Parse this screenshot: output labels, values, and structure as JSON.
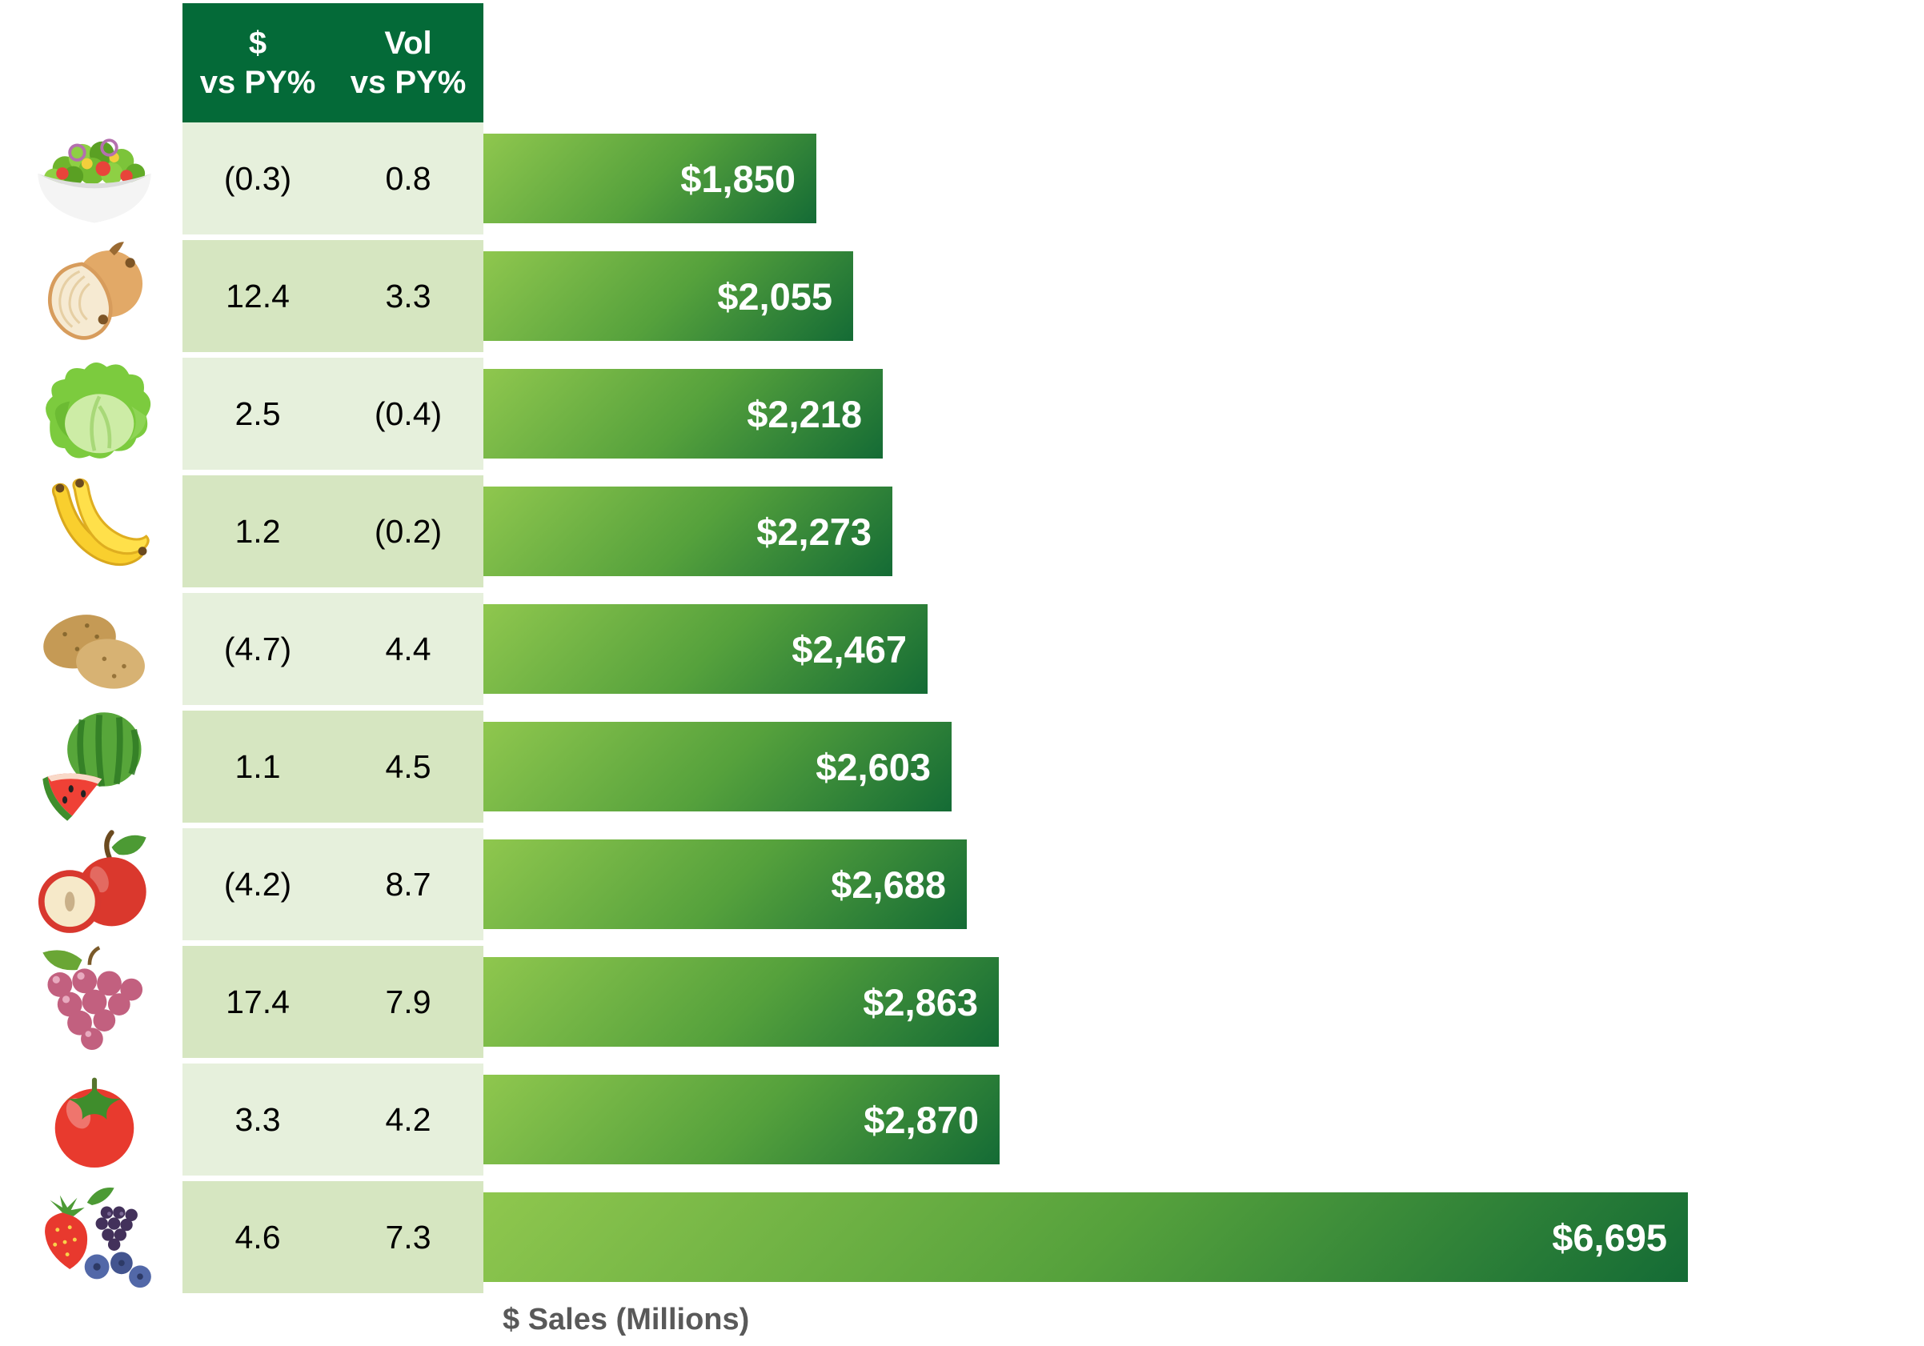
{
  "header": {
    "dollar_col": {
      "line1": "$",
      "line2": "vs PY%"
    },
    "vol_col": {
      "line1": "Vol",
      "line2": "vs PY%"
    }
  },
  "axis_label": "$ Sales (Millions)",
  "colors": {
    "header_bg": "#046a38",
    "row_light": "#e6f0dc",
    "row_dark": "#d6e6c1",
    "bar_gradient_start": "#8fc74e",
    "bar_gradient_mid": "#55a13c",
    "bar_gradient_end": "#146b35",
    "bar_label_text": "#ffffff",
    "table_text": "#000000",
    "axis_label_text": "#595959"
  },
  "rows": [
    {
      "category": "salad",
      "icon": "salad-icon",
      "dollar_vs_py": "(0.3)",
      "vol_vs_py": "0.8",
      "sales_label": "$1,850",
      "sales_value": 1850
    },
    {
      "category": "onions",
      "icon": "onion-icon",
      "dollar_vs_py": "12.4",
      "vol_vs_py": "3.3",
      "sales_label": "$2,055",
      "sales_value": 2055
    },
    {
      "category": "lettuce",
      "icon": "lettuce-icon",
      "dollar_vs_py": "2.5",
      "vol_vs_py": "(0.4)",
      "sales_label": "$2,218",
      "sales_value": 2218
    },
    {
      "category": "bananas",
      "icon": "bananas-icon",
      "dollar_vs_py": "1.2",
      "vol_vs_py": "(0.2)",
      "sales_label": "$2,273",
      "sales_value": 2273
    },
    {
      "category": "potatoes",
      "icon": "potatoes-icon",
      "dollar_vs_py": "(4.7)",
      "vol_vs_py": "4.4",
      "sales_label": "$2,467",
      "sales_value": 2467
    },
    {
      "category": "watermelon",
      "icon": "watermelon-icon",
      "dollar_vs_py": "1.1",
      "vol_vs_py": "4.5",
      "sales_label": "$2,603",
      "sales_value": 2603
    },
    {
      "category": "apples",
      "icon": "apple-icon",
      "dollar_vs_py": "(4.2)",
      "vol_vs_py": "8.7",
      "sales_label": "$2,688",
      "sales_value": 2688
    },
    {
      "category": "grapes",
      "icon": "grapes-icon",
      "dollar_vs_py": "17.4",
      "vol_vs_py": "7.9",
      "sales_label": "$2,863",
      "sales_value": 2863
    },
    {
      "category": "tomatoes",
      "icon": "tomato-icon",
      "dollar_vs_py": "3.3",
      "vol_vs_py": "4.2",
      "sales_label": "$2,870",
      "sales_value": 2870
    },
    {
      "category": "berries",
      "icon": "berries-icon",
      "dollar_vs_py": "4.6",
      "vol_vs_py": "7.3",
      "sales_label": "$6,695",
      "sales_value": 6695
    }
  ],
  "chart_data": {
    "type": "bar",
    "orientation": "horizontal",
    "title": "",
    "xlabel": "$ Sales (Millions)",
    "ylabel": "",
    "xlim": [
      0,
      6695
    ],
    "grid": false,
    "legend": "none",
    "categories": [
      "salad",
      "onions",
      "lettuce",
      "bananas",
      "potatoes",
      "watermelon",
      "apples",
      "grapes",
      "tomatoes",
      "berries"
    ],
    "series": [
      {
        "name": "$ vs PY%",
        "values": [
          -0.3,
          12.4,
          2.5,
          1.2,
          -4.7,
          1.1,
          -4.2,
          17.4,
          3.3,
          4.6
        ]
      },
      {
        "name": "Vol vs PY%",
        "values": [
          0.8,
          3.3,
          -0.4,
          -0.2,
          4.4,
          4.5,
          8.7,
          7.9,
          4.2,
          7.3
        ]
      },
      {
        "name": "$ Sales (Millions)",
        "values": [
          1850,
          2055,
          2218,
          2273,
          2467,
          2603,
          2688,
          2863,
          2870,
          6695
        ]
      }
    ],
    "bar_labels": [
      "$1,850",
      "$2,055",
      "$2,218",
      "$2,273",
      "$2,467",
      "$2,603",
      "$2,688",
      "$2,863",
      "$2,870",
      "$6,695"
    ],
    "bar_label_position": "inside-right",
    "negative_notation": "parentheses"
  }
}
